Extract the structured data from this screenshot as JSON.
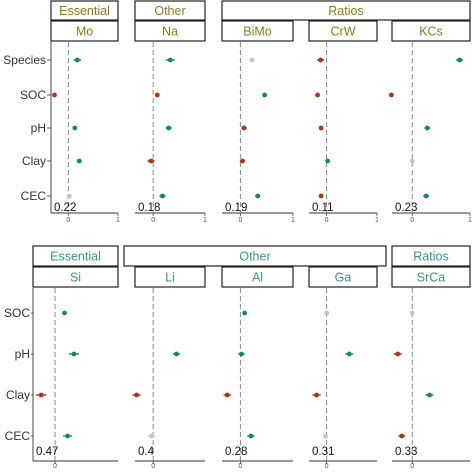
{
  "colors": {
    "positive": "#16866a",
    "negative": "#a8351c",
    "neutral": "#c4c4c4",
    "strip_text_top": "#8a7a22",
    "strip_text_bottom": "#3f8f8c",
    "panel_border": "#222222",
    "zero_line": "#8a8a8a"
  },
  "chart_data": [
    {
      "type": "scatter",
      "variant": "forest-plot",
      "group_strips": [
        {
          "label": "Essential",
          "columns": [
            0
          ]
        },
        {
          "label": "Other",
          "columns": [
            1
          ]
        },
        {
          "label": "Ratios",
          "columns": [
            2,
            3,
            4
          ]
        }
      ],
      "rows": [
        "Species",
        "SOC",
        "pH",
        "Clay",
        "CEC"
      ],
      "xlim": [
        -0.35,
        1.0
      ],
      "x_ticks": [
        0,
        1
      ],
      "panels": [
        {
          "title": "Mo",
          "r2": "0.22",
          "points": [
            {
              "row": "Species",
              "x": 0.18,
              "low": 0.1,
              "high": 0.26,
              "effect": "positive"
            },
            {
              "row": "SOC",
              "x": -0.28,
              "low": -0.3,
              "high": -0.26,
              "effect": "negative"
            },
            {
              "row": "pH",
              "x": 0.13,
              "low": 0.09,
              "high": 0.17,
              "effect": "positive"
            },
            {
              "row": "Clay",
              "x": 0.22,
              "low": 0.17,
              "high": 0.27,
              "effect": "positive"
            },
            {
              "row": "CEC",
              "x": 0.02,
              "low": -0.02,
              "high": 0.06,
              "effect": "neutral"
            }
          ]
        },
        {
          "title": "Na",
          "r2": "0.18",
          "points": [
            {
              "row": "Species",
              "x": 0.33,
              "low": 0.24,
              "high": 0.42,
              "effect": "positive"
            },
            {
              "row": "SOC",
              "x": 0.08,
              "low": 0.06,
              "high": 0.1,
              "effect": "negative"
            },
            {
              "row": "pH",
              "x": 0.3,
              "low": 0.24,
              "high": 0.36,
              "effect": "positive"
            },
            {
              "row": "Clay",
              "x": -0.04,
              "low": -0.11,
              "high": 0.03,
              "effect": "negative"
            },
            {
              "row": "CEC",
              "x": 0.18,
              "low": 0.12,
              "high": 0.24,
              "effect": "positive"
            }
          ]
        },
        {
          "title": "BiMo",
          "r2": "0.19",
          "points": [
            {
              "row": "Species",
              "x": 0.22,
              "low": 0.19,
              "high": 0.25,
              "effect": "neutral"
            },
            {
              "row": "SOC",
              "x": 0.46,
              "low": 0.44,
              "high": 0.48,
              "effect": "positive"
            },
            {
              "row": "pH",
              "x": 0.07,
              "low": 0.02,
              "high": 0.12,
              "effect": "negative"
            },
            {
              "row": "Clay",
              "x": 0.04,
              "low": -0.01,
              "high": 0.09,
              "effect": "negative"
            },
            {
              "row": "CEC",
              "x": 0.33,
              "low": 0.28,
              "high": 0.38,
              "effect": "positive"
            }
          ]
        },
        {
          "title": "CrW",
          "r2": "0.11",
          "points": [
            {
              "row": "Species",
              "x": -0.12,
              "low": -0.19,
              "high": -0.05,
              "effect": "negative"
            },
            {
              "row": "SOC",
              "x": -0.18,
              "low": -0.2,
              "high": -0.16,
              "effect": "negative"
            },
            {
              "row": "pH",
              "x": -0.11,
              "low": -0.15,
              "high": -0.07,
              "effect": "negative"
            },
            {
              "row": "Clay",
              "x": 0.02,
              "low": -0.02,
              "high": 0.06,
              "effect": "positive"
            },
            {
              "row": "CEC",
              "x": -0.11,
              "low": -0.15,
              "high": -0.07,
              "effect": "negative"
            }
          ]
        },
        {
          "title": "KCs",
          "r2": "0.23",
          "points": [
            {
              "row": "Species",
              "x": 0.82,
              "low": 0.76,
              "high": 0.88,
              "effect": "positive"
            },
            {
              "row": "SOC",
              "x": -0.36,
              "low": -0.38,
              "high": -0.34,
              "effect": "negative"
            },
            {
              "row": "pH",
              "x": 0.26,
              "low": 0.21,
              "high": 0.31,
              "effect": "positive"
            },
            {
              "row": "Clay",
              "x": 0.0,
              "low": -0.03,
              "high": 0.03,
              "effect": "neutral"
            },
            {
              "row": "CEC",
              "x": 0.24,
              "low": 0.19,
              "high": 0.29,
              "effect": "positive"
            }
          ]
        }
      ]
    },
    {
      "type": "scatter",
      "variant": "forest-plot",
      "group_strips": [
        {
          "label": "Essential",
          "columns": [
            0
          ]
        },
        {
          "label": "Other",
          "columns": [
            1,
            2,
            3
          ]
        },
        {
          "label": "Ratios",
          "columns": [
            4
          ]
        }
      ],
      "rows": [
        "SOC",
        "pH",
        "Clay",
        "CEC"
      ],
      "xlim": [
        -0.35,
        1.0
      ],
      "x_ticks": [
        0
      ],
      "panels": [
        {
          "title": "Si",
          "r2": "0.47",
          "points": [
            {
              "row": "SOC",
              "x": 0.15,
              "low": 0.13,
              "high": 0.17,
              "effect": "positive"
            },
            {
              "row": "pH",
              "x": 0.3,
              "low": 0.22,
              "high": 0.38,
              "effect": "positive"
            },
            {
              "row": "Clay",
              "x": -0.22,
              "low": -0.3,
              "high": -0.14,
              "effect": "negative"
            },
            {
              "row": "CEC",
              "x": 0.2,
              "low": 0.13,
              "high": 0.27,
              "effect": "positive"
            }
          ]
        },
        {
          "title": "Li",
          "r2": "0.4",
          "points": [
            {
              "row": "pH",
              "x": 0.45,
              "low": 0.38,
              "high": 0.52,
              "effect": "positive"
            },
            {
              "row": "Clay",
              "x": -0.32,
              "low": -0.4,
              "high": -0.24,
              "effect": "negative"
            },
            {
              "row": "CEC",
              "x": -0.03,
              "low": -0.1,
              "high": 0.04,
              "effect": "neutral"
            }
          ]
        },
        {
          "title": "Al",
          "r2": "0.28",
          "points": [
            {
              "row": "SOC",
              "x": 0.08,
              "low": 0.06,
              "high": 0.1,
              "effect": "positive"
            },
            {
              "row": "pH",
              "x": 0.02,
              "low": -0.04,
              "high": 0.08,
              "effect": "positive"
            },
            {
              "row": "Clay",
              "x": -0.25,
              "low": -0.32,
              "high": -0.18,
              "effect": "negative"
            },
            {
              "row": "CEC",
              "x": 0.2,
              "low": 0.13,
              "high": 0.27,
              "effect": "positive"
            }
          ]
        },
        {
          "title": "Ga",
          "r2": "0.31",
          "points": [
            {
              "row": "SOC",
              "x": 0.0,
              "low": -0.02,
              "high": 0.02,
              "effect": "neutral"
            },
            {
              "row": "pH",
              "x": 0.45,
              "low": 0.37,
              "high": 0.53,
              "effect": "positive"
            },
            {
              "row": "Clay",
              "x": -0.2,
              "low": -0.28,
              "high": -0.12,
              "effect": "negative"
            },
            {
              "row": "CEC",
              "x": -0.02,
              "low": -0.06,
              "high": 0.02,
              "effect": "neutral"
            }
          ]
        },
        {
          "title": "SrCa",
          "r2": "0.33",
          "points": [
            {
              "row": "SOC",
              "x": 0.0,
              "low": -0.02,
              "high": 0.02,
              "effect": "neutral"
            },
            {
              "row": "pH",
              "x": -0.25,
              "low": -0.32,
              "high": -0.18,
              "effect": "negative"
            },
            {
              "row": "Clay",
              "x": 0.3,
              "low": 0.23,
              "high": 0.37,
              "effect": "positive"
            },
            {
              "row": "CEC",
              "x": -0.18,
              "low": -0.24,
              "high": -0.12,
              "effect": "negative"
            }
          ]
        }
      ]
    }
  ]
}
